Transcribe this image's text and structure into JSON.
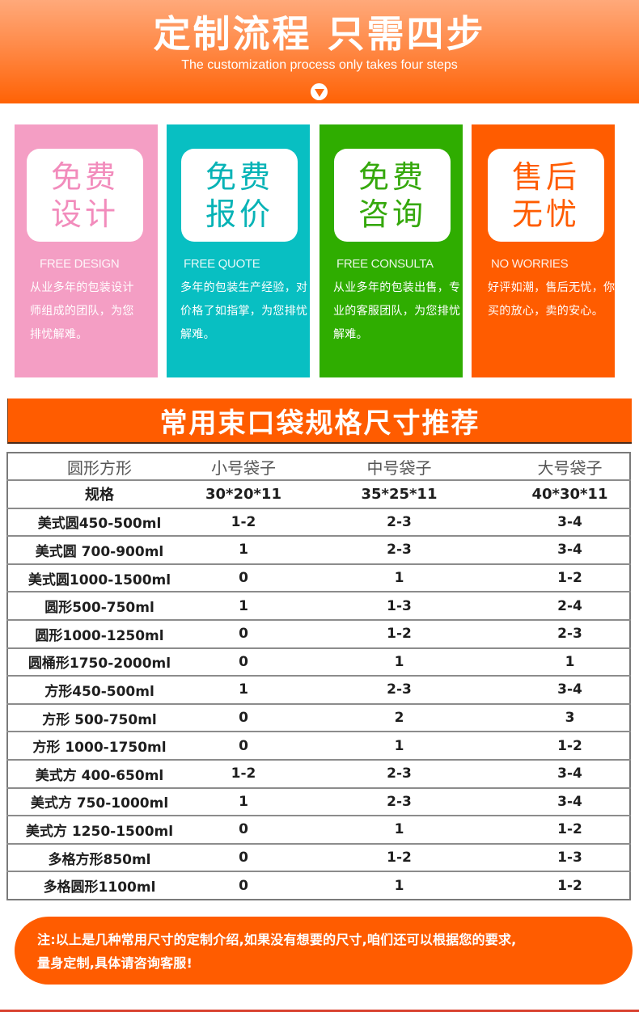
{
  "header": {
    "title": "定制流程 只需四步",
    "subtitle": "The customization process only takes four steps",
    "arrow_icon": "down-triangle-circle",
    "gradient": [
      "#ffa97a",
      "#ff6205"
    ]
  },
  "steps": [
    {
      "line1": "免费",
      "line2": "设计",
      "english": "FREE DESIGN",
      "description": "从业多年的包装设计师组成的团队，为您排忧解难。",
      "color": "#f49ec4"
    },
    {
      "line1": "免费",
      "line2": "报价",
      "english": "FREE QUOTE",
      "description": "多年的包装生产经验，对价格了如指掌，为您排忧解难。",
      "color": "#08bfc2"
    },
    {
      "line1": "免费",
      "line2": "咨询",
      "english": "FREE CONSULTA",
      "description": "从业多年的包装出售，专业的客服团队，为您排忧解难。",
      "color": "#2fad00"
    },
    {
      "line1": "售后",
      "line2": "无忧",
      "english": "NO WORRIES",
      "description": "好评如潮，售后无忧，你买的放心，卖的安心。",
      "color": "#ff5c00"
    }
  ],
  "section": {
    "title": "常用束口袋规格尺寸推荐",
    "color": "#ff5c00"
  },
  "table": {
    "headers": [
      "圆形方形",
      "小号袋子",
      "中号袋子",
      "大号袋子"
    ],
    "size_row": [
      "规格",
      "30*20*11",
      "35*25*11",
      "40*30*11"
    ],
    "rows": [
      [
        "美式圆450-500ml",
        "1-2",
        "2-3",
        "3-4"
      ],
      [
        "美式圆 700-900ml",
        "1",
        "2-3",
        "3-4"
      ],
      [
        "美式圆1000-1500ml",
        "0",
        "1",
        "1-2"
      ],
      [
        "圆形500-750ml",
        "1",
        "1-3",
        "2-4"
      ],
      [
        "圆形1000-1250ml",
        "0",
        "1-2",
        "2-3"
      ],
      [
        "圆桶形1750-2000ml",
        "0",
        "1",
        "1"
      ],
      [
        "方形450-500ml",
        "1",
        "2-3",
        "3-4"
      ],
      [
        "方形 500-750ml",
        "0",
        "2",
        "3"
      ],
      [
        "方形 1000-1750ml",
        "0",
        "1",
        "1-2"
      ],
      [
        "美式方 400-650ml",
        "1-2",
        "2-3",
        "3-4"
      ],
      [
        "美式方 750-1000ml",
        "1",
        "2-3",
        "3-4"
      ],
      [
        "美式方 1250-1500ml",
        "0",
        "1",
        "1-2"
      ],
      [
        "多格方形850ml",
        "0",
        "1-2",
        "1-3"
      ],
      [
        "多格圆形1100ml",
        "0",
        "1",
        "1-2"
      ]
    ]
  },
  "note": {
    "line1": "注:以上是几种常用尺寸的定制介绍,如果没有想要的尺寸,咱们还可以根据您的要求,",
    "line2": "量身定制,具体请咨询客服!"
  }
}
